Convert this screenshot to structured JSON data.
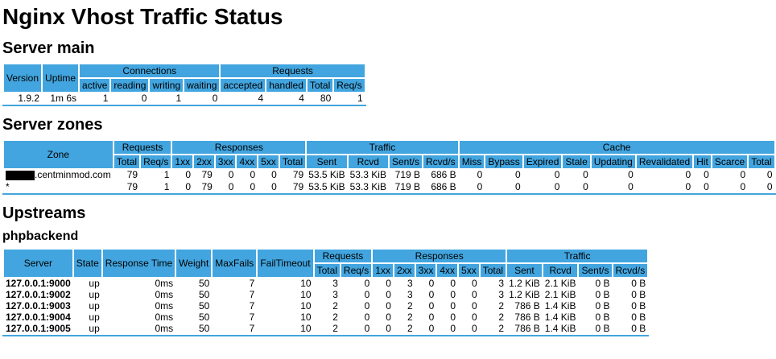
{
  "title": "Nginx Vhost Traffic Status",
  "colors": {
    "header_bg": "#42a5df"
  },
  "server_main": {
    "heading": "Server main",
    "header_rows": [
      [
        {
          "label": "Version",
          "rowspan": 2
        },
        {
          "label": "Uptime",
          "rowspan": 2
        },
        {
          "label": "Connections",
          "colspan": 4
        },
        {
          "label": "Requests",
          "colspan": 4
        }
      ],
      [
        {
          "label": "active"
        },
        {
          "label": "reading"
        },
        {
          "label": "writing"
        },
        {
          "label": "waiting"
        },
        {
          "label": "accepted"
        },
        {
          "label": "handled"
        },
        {
          "label": "Total"
        },
        {
          "label": "Req/s"
        }
      ]
    ],
    "rows": [
      [
        "1.9.2",
        "1m 6s",
        "1",
        "0",
        "1",
        "0",
        "4",
        "4",
        "80",
        "1"
      ]
    ]
  },
  "server_zones": {
    "heading": "Server zones",
    "header_rows": [
      [
        {
          "label": "Zone",
          "rowspan": 2
        },
        {
          "label": "Requests",
          "colspan": 2
        },
        {
          "label": "Responses",
          "colspan": 6
        },
        {
          "label": "Traffic",
          "colspan": 4
        },
        {
          "label": "Cache",
          "colspan": 9
        }
      ],
      [
        {
          "label": "Total"
        },
        {
          "label": "Req/s"
        },
        {
          "label": "1xx"
        },
        {
          "label": "2xx"
        },
        {
          "label": "3xx"
        },
        {
          "label": "4xx"
        },
        {
          "label": "5xx"
        },
        {
          "label": "Total"
        },
        {
          "label": "Sent"
        },
        {
          "label": "Rcvd"
        },
        {
          "label": "Sent/s"
        },
        {
          "label": "Rcvd/s"
        },
        {
          "label": "Miss"
        },
        {
          "label": "Bypass"
        },
        {
          "label": "Expired"
        },
        {
          "label": "Stale"
        },
        {
          "label": "Updating"
        },
        {
          "label": "Revalidated"
        },
        {
          "label": "Hit"
        },
        {
          "label": "Scarce"
        },
        {
          "label": "Total"
        }
      ]
    ],
    "rows": [
      [
        ".centminmod.com",
        "79",
        "1",
        "0",
        "79",
        "0",
        "0",
        "0",
        "79",
        "53.5 KiB",
        "53.3 KiB",
        "719 B",
        "686 B",
        "0",
        "0",
        "0",
        "0",
        "0",
        "0",
        "0",
        "0",
        "0"
      ],
      [
        "*",
        "79",
        "1",
        "0",
        "79",
        "0",
        "0",
        "0",
        "79",
        "53.5 KiB",
        "53.3 KiB",
        "719 B",
        "686 B",
        "0",
        "0",
        "0",
        "0",
        "0",
        "0",
        "0",
        "0",
        "0"
      ]
    ]
  },
  "upstreams": {
    "heading": "Upstreams",
    "group": "phpbackend",
    "header_rows": [
      [
        {
          "label": "Server",
          "rowspan": 2
        },
        {
          "label": "State",
          "rowspan": 2
        },
        {
          "label": "Response Time",
          "rowspan": 2
        },
        {
          "label": "Weight",
          "rowspan": 2
        },
        {
          "label": "MaxFails",
          "rowspan": 2
        },
        {
          "label": "FailTimeout",
          "rowspan": 2
        },
        {
          "label": "Requests",
          "colspan": 2
        },
        {
          "label": "Responses",
          "colspan": 6
        },
        {
          "label": "Traffic",
          "colspan": 4
        }
      ],
      [
        {
          "label": "Total"
        },
        {
          "label": "Req/s"
        },
        {
          "label": "1xx"
        },
        {
          "label": "2xx"
        },
        {
          "label": "3xx"
        },
        {
          "label": "4xx"
        },
        {
          "label": "5xx"
        },
        {
          "label": "Total"
        },
        {
          "label": "Sent"
        },
        {
          "label": "Rcvd"
        },
        {
          "label": "Sent/s"
        },
        {
          "label": "Rcvd/s"
        }
      ]
    ],
    "rows": [
      [
        "127.0.0.1:9000",
        "up",
        "0ms",
        "50",
        "7",
        "10",
        "3",
        "0",
        "0",
        "3",
        "0",
        "0",
        "0",
        "3",
        "1.2 KiB",
        "2.1 KiB",
        "0 B",
        "0 B"
      ],
      [
        "127.0.0.1:9002",
        "up",
        "0ms",
        "50",
        "7",
        "10",
        "3",
        "0",
        "0",
        "3",
        "0",
        "0",
        "0",
        "3",
        "1.2 KiB",
        "2.1 KiB",
        "0 B",
        "0 B"
      ],
      [
        "127.0.0.1:9003",
        "up",
        "0ms",
        "50",
        "7",
        "10",
        "2",
        "0",
        "0",
        "2",
        "0",
        "0",
        "0",
        "2",
        "786 B",
        "1.4 KiB",
        "0 B",
        "0 B"
      ],
      [
        "127.0.0.1:9004",
        "up",
        "0ms",
        "50",
        "7",
        "10",
        "2",
        "0",
        "0",
        "2",
        "0",
        "0",
        "0",
        "2",
        "786 B",
        "1.4 KiB",
        "0 B",
        "0 B"
      ],
      [
        "127.0.0.1:9005",
        "up",
        "0ms",
        "50",
        "7",
        "10",
        "2",
        "0",
        "0",
        "2",
        "0",
        "0",
        "0",
        "2",
        "786 B",
        "1.4 KiB",
        "0 B",
        "0 B"
      ]
    ]
  }
}
